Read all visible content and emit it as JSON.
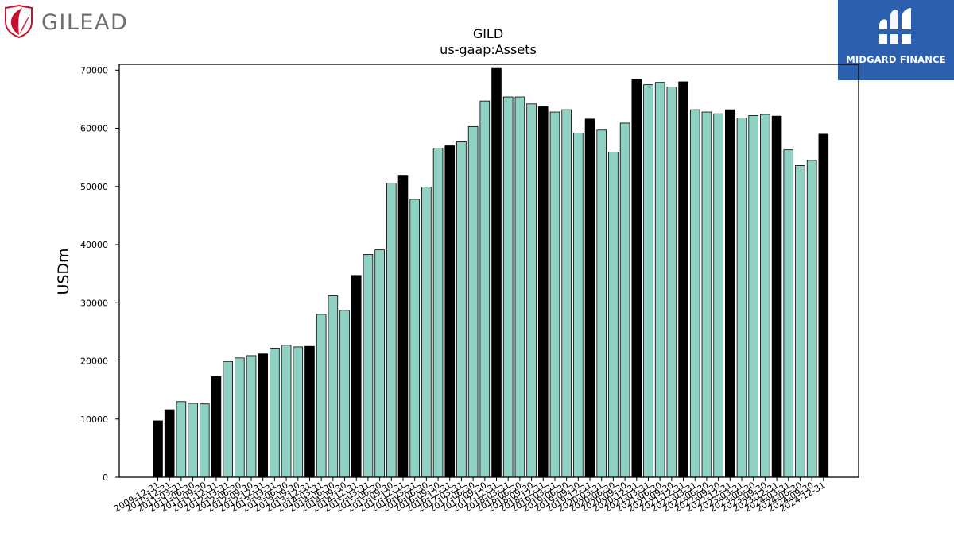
{
  "brand": {
    "company": "GILEAD",
    "partner": "MIDGARD FINANCE"
  },
  "chart_data": {
    "type": "bar",
    "title": "GILD",
    "subtitle": "us-gaap:Assets",
    "ylabel": "USDm",
    "xlabel": "",
    "ylim": [
      0,
      70000
    ],
    "yticks": [
      0,
      10000,
      20000,
      30000,
      40000,
      50000,
      60000,
      70000
    ],
    "grid": false,
    "colors": {
      "annual": "#000000",
      "quarterly": "#8fd1c2"
    },
    "categories": [
      "2009-12-31",
      "2010-12-31",
      "2011-03-31",
      "2011-06-30",
      "2011-09-30",
      "2011-12-31",
      "2012-03-31",
      "2012-06-30",
      "2012-09-30",
      "2012-12-31",
      "2013-03-31",
      "2013-06-30",
      "2013-09-30",
      "2013-12-31",
      "2014-03-31",
      "2014-06-30",
      "2014-09-30",
      "2014-12-31",
      "2015-03-31",
      "2015-06-30",
      "2015-09-30",
      "2015-12-31",
      "2016-03-31",
      "2016-06-30",
      "2016-09-30",
      "2016-12-31",
      "2017-03-31",
      "2017-06-30",
      "2017-09-30",
      "2017-12-31",
      "2018-03-31",
      "2018-06-30",
      "2018-09-30",
      "2018-12-31",
      "2019-03-31",
      "2019-06-30",
      "2019-09-30",
      "2019-12-31",
      "2020-03-31",
      "2020-06-30",
      "2020-09-30",
      "2020-12-31",
      "2021-03-31",
      "2021-06-30",
      "2021-09-30",
      "2021-12-31",
      "2022-03-31",
      "2022-06-30",
      "2022-09-30",
      "2022-12-31",
      "2023-03-31",
      "2023-06-30",
      "2023-09-30",
      "2023-12-31",
      "2024-03-31",
      "2024-06-30",
      "2024-09-30",
      "2024-12-31"
    ],
    "values": [
      9700,
      11600,
      13000,
      12700,
      12600,
      17300,
      19900,
      20500,
      20900,
      21200,
      22200,
      22700,
      22400,
      22500,
      28000,
      31200,
      28700,
      34700,
      38300,
      39100,
      50600,
      51800,
      47800,
      49900,
      56600,
      57000,
      57700,
      60300,
      64700,
      70300,
      65400,
      65400,
      64200,
      63700,
      62800,
      63200,
      59200,
      61600,
      59700,
      55900,
      60900,
      68400,
      67500,
      67900,
      67100,
      68000,
      63200,
      62800,
      62500,
      63200,
      61800,
      62200,
      62400,
      62100,
      56300,
      53600,
      54500,
      59000
    ],
    "annual": [
      true,
      true,
      false,
      false,
      false,
      true,
      false,
      false,
      false,
      true,
      false,
      false,
      false,
      true,
      false,
      false,
      false,
      true,
      false,
      false,
      false,
      true,
      false,
      false,
      false,
      true,
      false,
      false,
      false,
      true,
      false,
      false,
      false,
      true,
      false,
      false,
      false,
      true,
      false,
      false,
      false,
      true,
      false,
      false,
      false,
      true,
      false,
      false,
      false,
      true,
      false,
      false,
      false,
      true,
      false,
      false,
      false,
      true
    ]
  }
}
